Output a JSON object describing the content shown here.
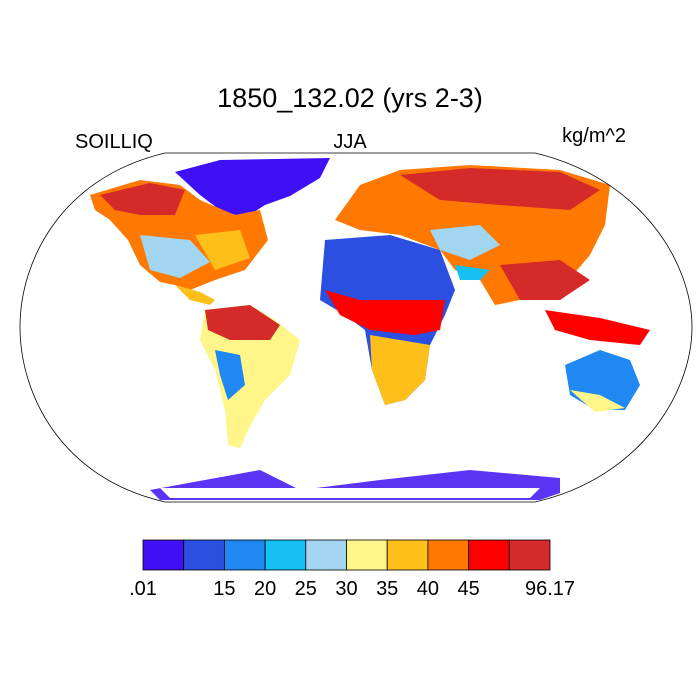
{
  "title": "1850_132.02 (yrs 2-3)",
  "left_label": "SOILLIQ",
  "center_label": "JJA",
  "right_label": "kg/m^2",
  "colorbar": {
    "colors": [
      "#3f10f5",
      "#2b4fe0",
      "#1f88f2",
      "#15c0f5",
      "#a2d5f0",
      "#fff588",
      "#ffbf1a",
      "#ff7800",
      "#ff0000",
      "#d42a2a"
    ],
    "labels": [
      ".01",
      null,
      "15",
      "20",
      "25",
      "30",
      "35",
      "40",
      "45",
      null,
      "96.17"
    ]
  }
}
